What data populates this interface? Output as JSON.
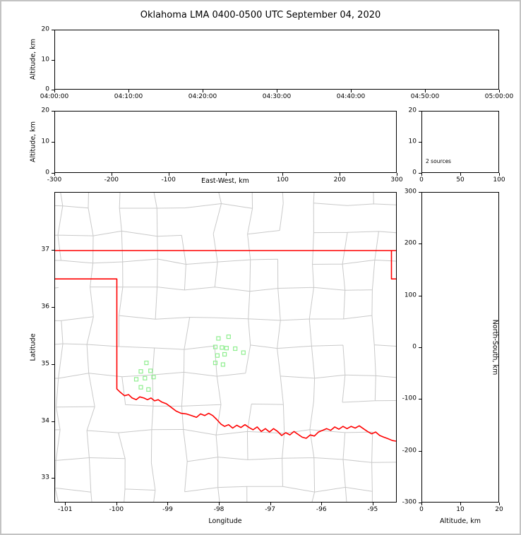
{
  "chart_data": {
    "type": "scatter",
    "title": "Oklahoma LMA 0400-0500 UTC September 04, 2020",
    "panels": {
      "time_height": {
        "ylabel": "Altitude, km",
        "ylim": [
          0,
          20
        ],
        "yticks": [
          0,
          10,
          20
        ],
        "xticks": [
          "04:00:00",
          "04:10:00",
          "04:20:00",
          "04:30:00",
          "04:40:00",
          "04:50:00",
          "05:00:00"
        ],
        "points": []
      },
      "ew_height": {
        "ylabel": "Altitude, km",
        "xlabel": "East-West, km",
        "xlim": [
          -300,
          300
        ],
        "ylim": [
          0,
          20
        ],
        "yticks": [
          0,
          10,
          20
        ],
        "xticks": [
          {
            "v": -300,
            "label": "-300"
          },
          {
            "v": -200,
            "label": "-200"
          },
          {
            "v": -100,
            "label": "-100"
          },
          {
            "v": 0,
            "label": ""
          },
          {
            "v": 100,
            "label": "100"
          },
          {
            "v": 200,
            "label": "200"
          },
          {
            "v": 300,
            "label": "300"
          }
        ],
        "points": []
      },
      "histogram": {
        "annotation": "2 sources",
        "xlim": [
          0,
          100
        ],
        "xticks": [
          0,
          50,
          100
        ],
        "ylim": [
          0,
          20
        ],
        "yticks": [
          0,
          10,
          20
        ],
        "points": []
      },
      "map": {
        "xlabel": "Longitude",
        "ylabel": "Latitude",
        "xlim": [
          -101.21,
          -94.53
        ],
        "ylim": [
          32.57,
          38.02
        ],
        "xticks": [
          -101,
          -100,
          -99,
          -98,
          -97,
          -96,
          -95
        ],
        "yticks": [
          33,
          34,
          35,
          36,
          37
        ],
        "county_line_color": "#c9c9c9",
        "state_border_color": "#ff0000",
        "station_marker_color": "#90ee90",
        "state_border": [
          [
            [
              -101.21,
              37.0
            ],
            [
              -94.53,
              37.0
            ]
          ],
          [
            [
              -94.62,
              37.0
            ],
            [
              -94.62,
              36.5
            ],
            [
              -94.53,
              36.5
            ]
          ],
          [
            [
              -101.21,
              36.5
            ],
            [
              -100.0,
              36.5
            ],
            [
              -100.0,
              34.56
            ],
            [
              -99.93,
              34.5
            ],
            [
              -99.85,
              34.44
            ],
            [
              -99.77,
              34.46
            ],
            [
              -99.7,
              34.4
            ],
            [
              -99.62,
              34.37
            ],
            [
              -99.55,
              34.42
            ],
            [
              -99.47,
              34.4
            ],
            [
              -99.4,
              34.37
            ],
            [
              -99.33,
              34.4
            ],
            [
              -99.26,
              34.35
            ],
            [
              -99.19,
              34.37
            ],
            [
              -99.12,
              34.33
            ],
            [
              -99.03,
              34.3
            ],
            [
              -98.94,
              34.24
            ],
            [
              -98.84,
              34.17
            ],
            [
              -98.74,
              34.13
            ],
            [
              -98.64,
              34.12
            ],
            [
              -98.54,
              34.09
            ],
            [
              -98.44,
              34.06
            ],
            [
              -98.36,
              34.12
            ],
            [
              -98.28,
              34.09
            ],
            [
              -98.2,
              34.13
            ],
            [
              -98.12,
              34.09
            ],
            [
              -98.04,
              34.02
            ],
            [
              -97.96,
              33.94
            ],
            [
              -97.89,
              33.9
            ],
            [
              -97.81,
              33.93
            ],
            [
              -97.73,
              33.87
            ],
            [
              -97.65,
              33.92
            ],
            [
              -97.57,
              33.88
            ],
            [
              -97.49,
              33.93
            ],
            [
              -97.41,
              33.88
            ],
            [
              -97.33,
              33.84
            ],
            [
              -97.25,
              33.89
            ],
            [
              -97.17,
              33.81
            ],
            [
              -97.09,
              33.86
            ],
            [
              -97.01,
              33.8
            ],
            [
              -96.93,
              33.86
            ],
            [
              -96.85,
              33.81
            ],
            [
              -96.77,
              33.74
            ],
            [
              -96.69,
              33.79
            ],
            [
              -96.61,
              33.75
            ],
            [
              -96.53,
              33.81
            ],
            [
              -96.45,
              33.76
            ],
            [
              -96.37,
              33.71
            ],
            [
              -96.29,
              33.69
            ],
            [
              -96.21,
              33.75
            ],
            [
              -96.13,
              33.73
            ],
            [
              -96.05,
              33.8
            ],
            [
              -95.97,
              33.83
            ],
            [
              -95.89,
              33.86
            ],
            [
              -95.81,
              33.83
            ],
            [
              -95.73,
              33.89
            ],
            [
              -95.65,
              33.85
            ],
            [
              -95.57,
              33.9
            ],
            [
              -95.49,
              33.86
            ],
            [
              -95.41,
              33.9
            ],
            [
              -95.33,
              33.87
            ],
            [
              -95.25,
              33.91
            ],
            [
              -95.17,
              33.86
            ],
            [
              -95.09,
              33.81
            ],
            [
              -95.01,
              33.77
            ],
            [
              -94.93,
              33.8
            ],
            [
              -94.85,
              33.74
            ],
            [
              -94.77,
              33.71
            ],
            [
              -94.68,
              33.68
            ],
            [
              -94.6,
              33.65
            ],
            [
              -94.53,
              33.64
            ]
          ]
        ],
        "stations": [
          [
            -99.42,
            35.02
          ],
          [
            -99.53,
            34.87
          ],
          [
            -99.34,
            34.88
          ],
          [
            -99.62,
            34.73
          ],
          [
            -99.45,
            34.75
          ],
          [
            -99.28,
            34.77
          ],
          [
            -99.53,
            34.59
          ],
          [
            -99.38,
            34.55
          ],
          [
            -98.01,
            35.45
          ],
          [
            -97.81,
            35.48
          ],
          [
            -98.07,
            35.3
          ],
          [
            -97.94,
            35.29
          ],
          [
            -97.85,
            35.28
          ],
          [
            -97.68,
            35.27
          ],
          [
            -98.03,
            35.15
          ],
          [
            -97.89,
            35.17
          ],
          [
            -98.07,
            35.02
          ],
          [
            -97.92,
            34.99
          ],
          [
            -97.52,
            35.2
          ]
        ]
      },
      "ns_height": {
        "xlabel": "Altitude, km",
        "ylabel": "North-South, km",
        "xlim": [
          0,
          20
        ],
        "xticks": [
          0,
          10,
          20
        ],
        "ylim": [
          -300,
          300
        ],
        "yticks": [
          300,
          200,
          100,
          0,
          -100,
          -200,
          -300
        ],
        "points": []
      }
    }
  }
}
